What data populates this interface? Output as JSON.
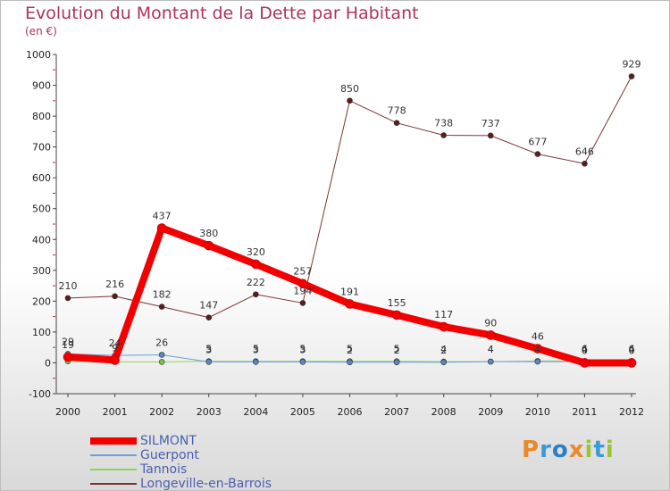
{
  "title": "Evolution du Montant de la Dette par Habitant",
  "subtitle": "(en €)",
  "logo": {
    "text": "Proxiti",
    "letters": [
      {
        "ch": "P",
        "color": "#e8892a"
      },
      {
        "ch": "r",
        "color": "#3a9ad9"
      },
      {
        "ch": "o",
        "color": "#2a7fc8"
      },
      {
        "ch": "x",
        "color": "#e8892a"
      },
      {
        "ch": "i",
        "color": "#9bc43a"
      },
      {
        "ch": "t",
        "color": "#3a9ad9"
      },
      {
        "ch": "i",
        "color": "#9bc43a"
      }
    ]
  },
  "chart_data": {
    "type": "line",
    "title": "Evolution du Montant de la Dette par Habitant",
    "ylabel": "(en €)",
    "categories": [
      "2000",
      "2001",
      "2002",
      "2003",
      "2004",
      "2005",
      "2006",
      "2007",
      "2008",
      "2009",
      "2010",
      "2011",
      "2012"
    ],
    "ylim": [
      -100,
      1000
    ],
    "yticks": [
      "-100",
      "0",
      "100",
      "200",
      "300",
      "400",
      "500",
      "600",
      "700",
      "800",
      "900",
      "1000"
    ],
    "grid": false,
    "series": [
      {
        "name": "SILMONT",
        "color": "#f20000",
        "width": 8,
        "values": [
          19,
          9,
          437,
          380,
          320,
          257,
          191,
          155,
          117,
          90,
          46,
          0,
          0
        ],
        "labels": [
          "19",
          "9",
          "437",
          "380",
          "320",
          "257",
          "191",
          "155",
          "117",
          "90",
          "46",
          "0",
          "0"
        ]
      },
      {
        "name": "Guerpont",
        "color": "#6d9ed4",
        "width": 1,
        "values": [
          29,
          24,
          26,
          3,
          3,
          3,
          2,
          2,
          2,
          4,
          4,
          4,
          4
        ],
        "labels": [
          "29",
          "24",
          "26",
          "3",
          "3",
          "3",
          "2",
          "2",
          "2",
          "4",
          "4",
          "4",
          "4"
        ]
      },
      {
        "name": "Tannois",
        "color": "#8fd45a",
        "width": 1,
        "values": [
          5,
          3,
          3,
          5,
          5,
          5,
          5,
          5,
          4,
          4,
          6,
          6,
          6
        ],
        "labels": [
          "",
          "",
          "",
          "5",
          "5",
          "5",
          "5",
          "5",
          "4",
          "4",
          "",
          "6",
          "6"
        ]
      },
      {
        "name": "Longeville-en-Barrois",
        "color": "#7a3434",
        "width": 1,
        "values": [
          210,
          216,
          182,
          147,
          222,
          194,
          850,
          778,
          738,
          737,
          677,
          646,
          929
        ],
        "labels": [
          "210",
          "216",
          "182",
          "147",
          "222",
          "194",
          "850",
          "778",
          "738",
          "737",
          "677",
          "646",
          "929"
        ]
      }
    ],
    "legend_position": "bottom-left"
  }
}
